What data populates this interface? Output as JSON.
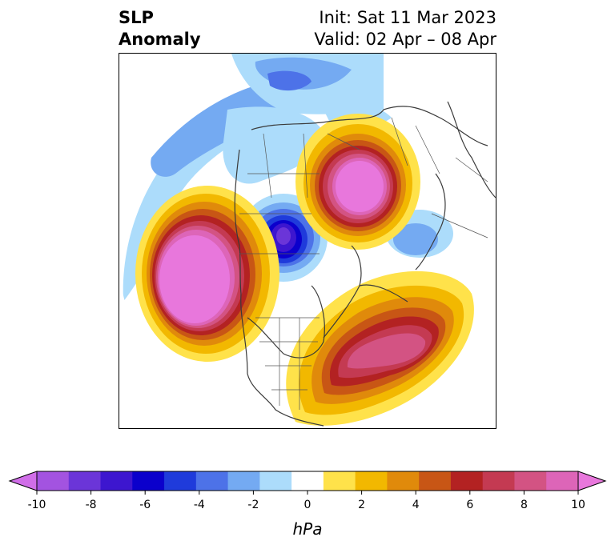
{
  "title": {
    "left_line1": "SLP",
    "left_line2": "Anomaly",
    "right_line1": "Init: Sat 11 Mar 2023",
    "right_line2": "Valid: 02 Apr – 08 Apr"
  },
  "colorbar": {
    "unit": "hPa",
    "tick_labels": [
      "-10",
      "-8",
      "-6",
      "-4",
      "-2",
      "0",
      "2",
      "4",
      "6",
      "8",
      "10"
    ],
    "bins": [
      {
        "color": "#a353e0"
      },
      {
        "color": "#6b35d8"
      },
      {
        "color": "#3d16cf"
      },
      {
        "color": "#0b00cc"
      },
      {
        "color": "#1f3bdb"
      },
      {
        "color": "#4d72e8"
      },
      {
        "color": "#74aaf2"
      },
      {
        "color": "#acdcfb"
      },
      {
        "color": "#ffffff"
      },
      {
        "color": "#ffe24a"
      },
      {
        "color": "#f2b800"
      },
      {
        "color": "#e08a0b"
      },
      {
        "color": "#c85615"
      },
      {
        "color": "#b32222"
      },
      {
        "color": "#c43a52"
      },
      {
        "color": "#d35383"
      },
      {
        "color": "#dd65b8"
      }
    ],
    "extend_low_color": "#d06ee8",
    "extend_high_color": "#e877dc"
  },
  "anomalies": [
    {
      "name": "positive-anomaly-pacific",
      "sign": "positive",
      "peak_hpa": 10
    },
    {
      "name": "positive-anomaly-eurasia",
      "sign": "positive",
      "peak_hpa": 10
    },
    {
      "name": "positive-anomaly-atlantic",
      "sign": "positive",
      "peak_hpa": 8
    },
    {
      "name": "negative-anomaly-hudson",
      "sign": "negative",
      "peak_hpa": -7
    },
    {
      "name": "negative-anomaly-arctic-canada",
      "sign": "negative",
      "peak_hpa": -4
    }
  ]
}
